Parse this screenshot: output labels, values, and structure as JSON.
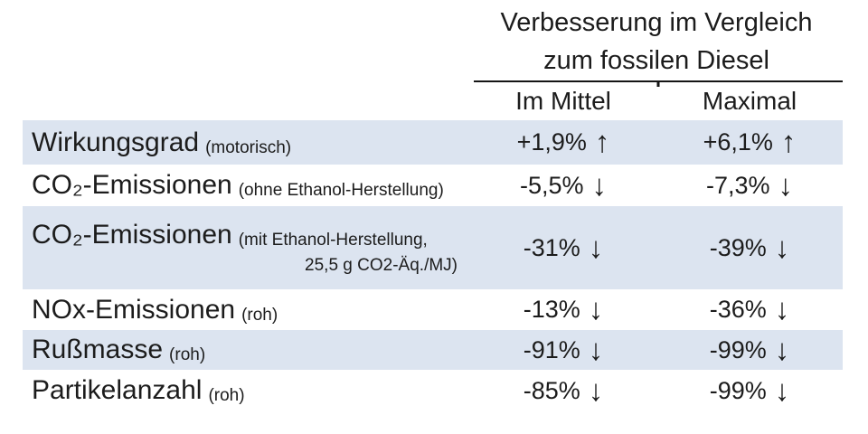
{
  "header": {
    "title_line1": "Verbesserung im Vergleich",
    "title_line2": "zum fossilen Diesel",
    "col_mean": "Im Mittel",
    "col_max": "Maximal"
  },
  "rows": [
    {
      "label": "Wirkungsgrad",
      "sub": "(motorisch)",
      "sub2": "",
      "mean": "+1,9%",
      "mean_arrow": "↑",
      "max": "+6,1%",
      "max_arrow": "↑"
    },
    {
      "label": "CO₂-Emissionen",
      "sub": "(ohne Ethanol-Herstellung)",
      "sub2": "",
      "mean": "-5,5%",
      "mean_arrow": "↓",
      "max": "-7,3%",
      "max_arrow": "↓"
    },
    {
      "label": "CO₂-Emissionen",
      "sub": "(mit Ethanol-Herstellung,",
      "sub2": "25,5 g CO2-Äq./MJ)",
      "mean": "-31%",
      "mean_arrow": "↓",
      "max": "-39%",
      "max_arrow": "↓"
    },
    {
      "label": "NOx-Emissionen",
      "sub": "(roh)",
      "sub2": "",
      "mean": "-13%",
      "mean_arrow": "↓",
      "max": "-36%",
      "max_arrow": "↓"
    },
    {
      "label": "Rußmasse",
      "sub": "(roh)",
      "sub2": "",
      "mean": "-91%",
      "mean_arrow": "↓",
      "max": "-99%",
      "max_arrow": "↓"
    },
    {
      "label": "Partikelanzahl",
      "sub": "(roh)",
      "sub2": "",
      "mean": "-85%",
      "mean_arrow": "↓",
      "max": "-99%",
      "max_arrow": "↓"
    }
  ],
  "colors": {
    "row_band": "#dce4f0",
    "text": "#1c1c1c",
    "divider": "#151515"
  },
  "chart_data": {
    "type": "table",
    "title": "Verbesserung im Vergleich zum fossilen Diesel",
    "columns": [
      "Im Mittel",
      "Maximal"
    ],
    "rows": [
      {
        "metric": "Wirkungsgrad (motorisch)",
        "im_mittel": "+1,9% ↑",
        "maximal": "+6,1% ↑",
        "im_mittel_pct": 1.9,
        "maximal_pct": 6.1
      },
      {
        "metric": "CO2-Emissionen (ohne Ethanol-Herstellung)",
        "im_mittel": "-5,5% ↓",
        "maximal": "-7,3% ↓",
        "im_mittel_pct": -5.5,
        "maximal_pct": -7.3
      },
      {
        "metric": "CO2-Emissionen (mit Ethanol-Herstellung, 25,5 g CO2-Äq./MJ)",
        "im_mittel": "-31% ↓",
        "maximal": "-39% ↓",
        "im_mittel_pct": -31,
        "maximal_pct": -39
      },
      {
        "metric": "NOx-Emissionen (roh)",
        "im_mittel": "-13% ↓",
        "maximal": "-36% ↓",
        "im_mittel_pct": -13,
        "maximal_pct": -36
      },
      {
        "metric": "Rußmasse (roh)",
        "im_mittel": "-91% ↓",
        "maximal": "-99% ↓",
        "im_mittel_pct": -91,
        "maximal_pct": -99
      },
      {
        "metric": "Partikelanzahl (roh)",
        "im_mittel": "-85% ↓",
        "maximal": "-99% ↓",
        "im_mittel_pct": -85,
        "maximal_pct": -99
      }
    ]
  }
}
